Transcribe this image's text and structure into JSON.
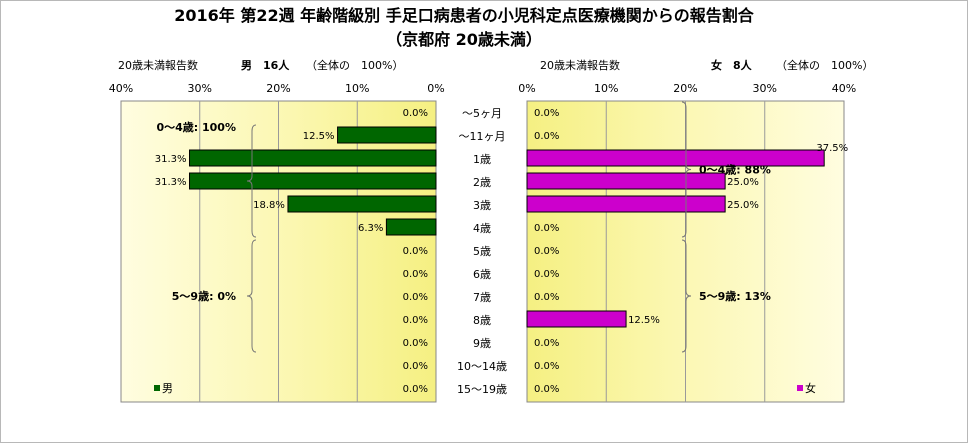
{
  "chart_data": {
    "type": "bar",
    "title_line1": "2016年 第22週 年齢階級別 手足口病患者の小児科定点医療機関からの報告割合",
    "title_line2": "（京都府 20歳未満）",
    "categories": [
      "～5ヶ月",
      "～11ヶ月",
      "1歳",
      "2歳",
      "3歳",
      "4歳",
      "5歳",
      "6歳",
      "7歳",
      "8歳",
      "9歳",
      "10～14歳",
      "15～19歳"
    ],
    "male": {
      "header_label": "20歳未満報告数",
      "header_count": "男　16人",
      "header_note": "（全体の　100%）",
      "legend": "男",
      "color": "#006600",
      "values": [
        0.0,
        12.5,
        31.3,
        31.3,
        18.8,
        6.3,
        0.0,
        0.0,
        0.0,
        0.0,
        0.0,
        0.0,
        0.0
      ],
      "labels": [
        "0.0%",
        "12.5%",
        "31.3%",
        "31.3%",
        "18.8%",
        "6.3%",
        "0.0%",
        "0.0%",
        "0.0%",
        "0.0%",
        "0.0%",
        "0.0%",
        "0.0%"
      ],
      "xlim": [
        0,
        40
      ],
      "ticks": [
        "40%",
        "30%",
        "20%",
        "10%",
        "0%"
      ],
      "brackets": [
        {
          "label": "0～4歳: 100%",
          "from": 1,
          "to": 5
        },
        {
          "label": "5～9歳: 0%",
          "from": 6,
          "to": 10
        }
      ]
    },
    "female": {
      "header_label": "20歳未満報告数",
      "header_count": "女　8人",
      "header_note": "（全体の　100%）",
      "legend": "女",
      "color": "#cc00cc",
      "values": [
        0.0,
        0.0,
        37.5,
        25.0,
        25.0,
        0.0,
        0.0,
        0.0,
        0.0,
        12.5,
        0.0,
        0.0,
        0.0
      ],
      "labels": [
        "0.0%",
        "0.0%",
        "37.5%",
        "25.0%",
        "25.0%",
        "0.0%",
        "0.0%",
        "0.0%",
        "0.0%",
        "12.5%",
        "0.0%",
        "0.0%",
        "0.0%"
      ],
      "xlim": [
        0,
        40
      ],
      "ticks": [
        "0%",
        "10%",
        "20%",
        "30%",
        "40%"
      ],
      "brackets": [
        {
          "label": "0～4歳: 88%",
          "from": 0,
          "to": 5
        },
        {
          "label": "5～9歳: 13%",
          "from": 6,
          "to": 10
        }
      ]
    },
    "grid": true
  }
}
